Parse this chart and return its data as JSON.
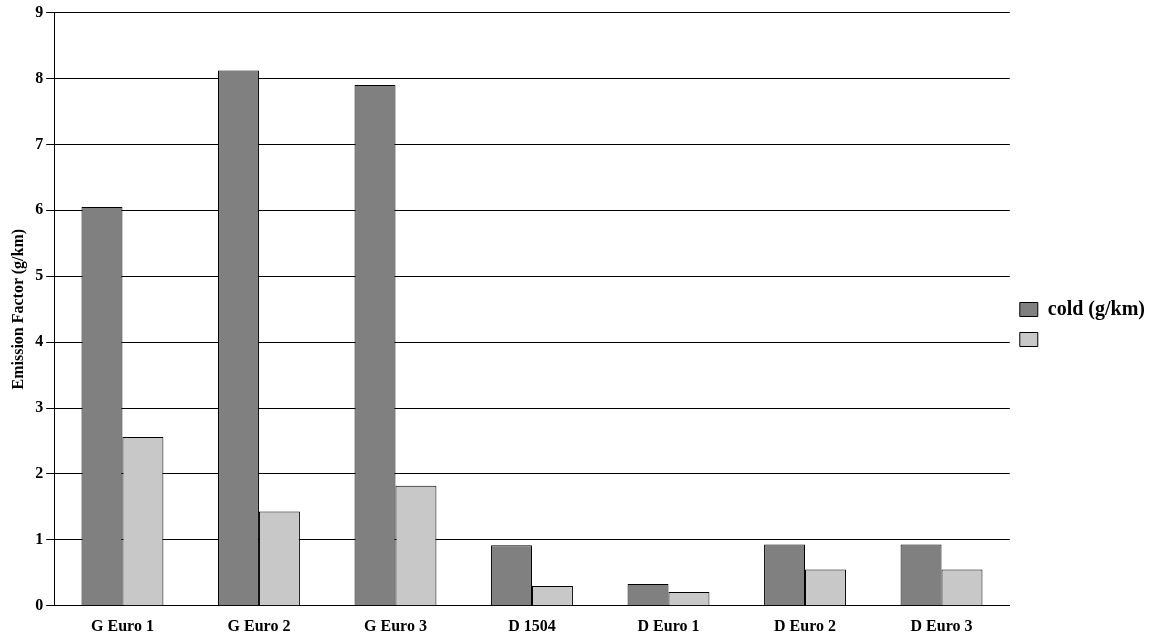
{
  "chart_data": {
    "type": "bar",
    "ylabel": "Emission Factor (g/km)",
    "categories": [
      "G Euro 1",
      "G Euro 2",
      "G Euro 3",
      "D 1504",
      "D Euro 1",
      "D Euro 2",
      "D Euro 3"
    ],
    "series": [
      {
        "name": "cold (g/km)",
        "color": "#808080",
        "values": [
          6.05,
          8.12,
          7.9,
          0.92,
          0.33,
          0.93,
          0.93
        ]
      },
      {
        "color": "#c8c8c8",
        "values": [
          2.56,
          1.43,
          1.82,
          0.3,
          0.21,
          0.55,
          0.55
        ]
      }
    ],
    "ylim": [
      0,
      9
    ],
    "yticks": [
      0,
      1,
      2,
      3,
      4,
      5,
      6,
      7,
      8,
      9
    ],
    "grid": "y",
    "legend": "right"
  }
}
